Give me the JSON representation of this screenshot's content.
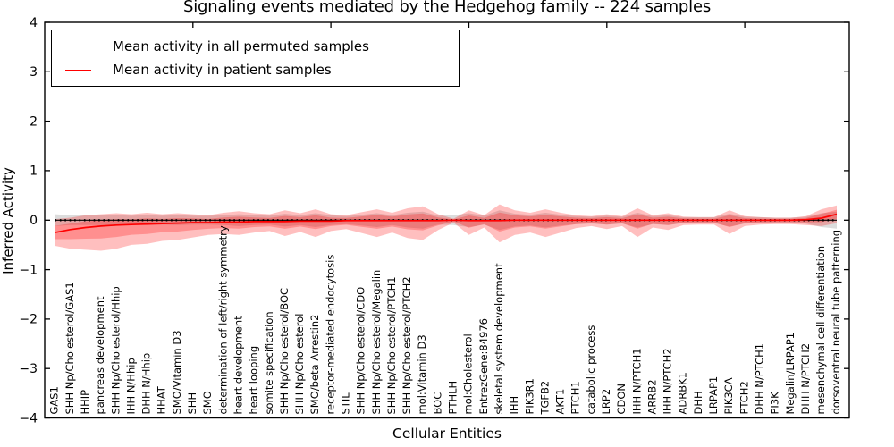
{
  "title": "Signaling events mediated by the Hedgehog family -- 224 samples",
  "legend": {
    "items": [
      {
        "label": "Mean activity in all permuted samples",
        "color": "#000000"
      },
      {
        "label": "Mean activity in patient samples",
        "color": "#ff0000"
      }
    ]
  },
  "axes": {
    "xlabel": "Cellular Entities",
    "ylabel": "Inferred Activity",
    "ylim": [
      -4,
      4
    ],
    "yticks": [
      {
        "value": 4,
        "label": "4"
      },
      {
        "value": 3,
        "label": "3"
      },
      {
        "value": 2,
        "label": "2"
      },
      {
        "value": 1,
        "label": "1"
      },
      {
        "value": 0,
        "label": "0"
      },
      {
        "value": -1,
        "label": "−1"
      },
      {
        "value": -2,
        "label": "−2"
      },
      {
        "value": -3,
        "label": "−3"
      },
      {
        "value": -4,
        "label": "−4"
      }
    ]
  },
  "colors": {
    "patient_line": "#ff0000",
    "permuted_line": "#000000",
    "patient_band_fill": "rgba(255,0,0,0.25)",
    "permuted_band_fill": "rgba(130,130,130,0.28)",
    "spine": "#000000",
    "background": "#ffffff"
  },
  "chart_data": {
    "type": "line",
    "title": "Signaling events mediated by the Hedgehog family -- 224 samples",
    "xlabel": "Cellular Entities",
    "ylabel": "Inferred Activity",
    "ylim": [
      -4,
      4
    ],
    "n_samples": 224,
    "legend_position": "upper left",
    "categories": [
      "GAS1",
      "SHH Np/Cholesterol/GAS1",
      "HHIP",
      "pancreas development",
      "SHH Np/Cholesterol/Hhip",
      "IHH N/Hhip",
      "DHH N/Hhip",
      "HHAT",
      "SMO/Vitamin D3",
      "SHH",
      "SMO",
      "determination of left/right symmetry",
      "heart development",
      "heart looping",
      "somite specification",
      "SHH Np/Cholesterol/BOC",
      "SHH Np/Cholesterol",
      "SMO/beta Arrestin2",
      "receptor-mediated endocytosis",
      "STIL",
      "SHH Np/Cholesterol/CDO",
      "SHH Np/Cholesterol/Megalin",
      "SHH Np/Cholesterol/PTCH1",
      "SHH Np/Cholesterol/PTCH2",
      "mol:Vitamin D3",
      "BOC",
      "PTHLH",
      "mol:Cholesterol",
      "EntrezGene:84976",
      "skeletal system development",
      "IHH",
      "PIK3R1",
      "TGFB2",
      "AKT1",
      "PTCH1",
      "catabolic process",
      "LRP2",
      "CDON",
      "IHH N/PTCH1",
      "ARRB2",
      "IHH N/PTCH2",
      "ADRBK1",
      "DHH",
      "LRPAP1",
      "PIK3CA",
      "PTCH2",
      "DHH N/PTCH1",
      "PI3K",
      "Megalin/LRPAP1",
      "DHH N/PTCH2",
      "mesenchymal cell differentiation",
      "dorsoventral neural tube patterning"
    ],
    "series": [
      {
        "name": "Mean activity in all permuted samples",
        "color": "#000000",
        "values": [
          0,
          0,
          0,
          0,
          0,
          0,
          0,
          0,
          0,
          0,
          0,
          0,
          0,
          0,
          0,
          0,
          0,
          0,
          0,
          0,
          0,
          0,
          0,
          0,
          0,
          0,
          0,
          0,
          0,
          0,
          0,
          0,
          0,
          0,
          0,
          0,
          0,
          0,
          0,
          0,
          0,
          0,
          0,
          0,
          0,
          0,
          0,
          0,
          0,
          0,
          0,
          0
        ]
      },
      {
        "name": "Mean activity in patient samples",
        "color": "#ff0000",
        "values": [
          -0.25,
          -0.19,
          -0.15,
          -0.12,
          -0.1,
          -0.09,
          -0.08,
          -0.07,
          -0.06,
          -0.05,
          -0.05,
          -0.04,
          -0.04,
          -0.03,
          -0.03,
          -0.03,
          -0.02,
          -0.02,
          -0.02,
          -0.01,
          -0.01,
          -0.01,
          -0.01,
          -0.01,
          -0.01,
          -0.01,
          0,
          -0.01,
          -0.01,
          -0.01,
          0,
          0,
          0,
          0,
          0,
          0,
          0,
          0,
          0,
          0,
          0,
          0,
          0,
          0,
          0,
          0,
          0,
          0,
          0,
          0.01,
          0.04,
          0.12
        ]
      }
    ],
    "bands": [
      {
        "name": "permuted samples spread",
        "color": "gray",
        "upper": [
          0.12,
          0.1,
          0.1,
          0.1,
          0.1,
          0.09,
          0.1,
          0.09,
          0.1,
          0.09,
          0.09,
          0.1,
          0.12,
          0.1,
          0.09,
          0.13,
          0.1,
          0.14,
          0.1,
          0.08,
          0.11,
          0.14,
          0.1,
          0.15,
          0.17,
          0.09,
          0.1,
          0.14,
          0.09,
          0.2,
          0.13,
          0.11,
          0.15,
          0.11,
          0.08,
          0.07,
          0.09,
          0.07,
          0.15,
          0.08,
          0.1,
          0.06,
          0.06,
          0.06,
          0.13,
          0.07,
          0.06,
          0.05,
          0.05,
          0.07,
          0.14,
          0.17
        ],
        "lower": [
          -0.12,
          -0.1,
          -0.1,
          -0.1,
          -0.1,
          -0.09,
          -0.1,
          -0.09,
          -0.1,
          -0.09,
          -0.09,
          -0.1,
          -0.12,
          -0.1,
          -0.09,
          -0.13,
          -0.1,
          -0.14,
          -0.1,
          -0.08,
          -0.11,
          -0.14,
          -0.1,
          -0.15,
          -0.17,
          -0.09,
          -0.1,
          -0.14,
          -0.09,
          -0.2,
          -0.13,
          -0.11,
          -0.15,
          -0.11,
          -0.08,
          -0.07,
          -0.09,
          -0.07,
          -0.15,
          -0.08,
          -0.1,
          -0.06,
          -0.06,
          -0.06,
          -0.13,
          -0.07,
          -0.06,
          -0.05,
          -0.05,
          -0.07,
          -0.14,
          -0.17
        ]
      },
      {
        "name": "patient samples spread",
        "color": "red",
        "upper": [
          0.02,
          0.05,
          0.1,
          0.12,
          0.14,
          0.12,
          0.15,
          0.12,
          0.14,
          0.12,
          0.1,
          0.15,
          0.18,
          0.14,
          0.12,
          0.2,
          0.14,
          0.22,
          0.12,
          0.1,
          0.16,
          0.22,
          0.15,
          0.24,
          0.28,
          0.12,
          0.03,
          0.2,
          0.1,
          0.32,
          0.2,
          0.15,
          0.22,
          0.15,
          0.1,
          0.08,
          0.12,
          0.08,
          0.24,
          0.1,
          0.14,
          0.07,
          0.06,
          0.06,
          0.2,
          0.08,
          0.06,
          0.05,
          0.05,
          0.08,
          0.22,
          0.3
        ],
        "lower": [
          -0.52,
          -0.58,
          -0.6,
          -0.62,
          -0.58,
          -0.5,
          -0.48,
          -0.42,
          -0.4,
          -0.35,
          -0.3,
          -0.28,
          -0.3,
          -0.25,
          -0.22,
          -0.32,
          -0.24,
          -0.34,
          -0.22,
          -0.18,
          -0.26,
          -0.34,
          -0.25,
          -0.36,
          -0.4,
          -0.2,
          -0.05,
          -0.3,
          -0.15,
          -0.45,
          -0.3,
          -0.25,
          -0.34,
          -0.25,
          -0.16,
          -0.12,
          -0.18,
          -0.12,
          -0.34,
          -0.15,
          -0.2,
          -0.1,
          -0.09,
          -0.09,
          -0.28,
          -0.12,
          -0.09,
          -0.08,
          -0.08,
          -0.1,
          -0.12,
          -0.06
        ]
      }
    ]
  }
}
